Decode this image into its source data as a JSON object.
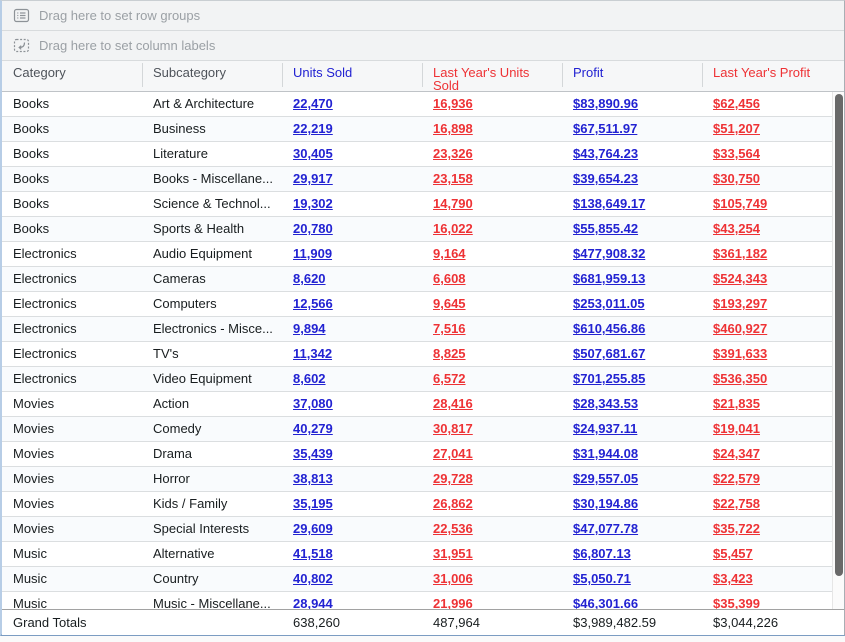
{
  "dropzones": {
    "row_groups": {
      "label": "Drag here to set row groups",
      "icon": "row-groups-icon"
    },
    "column_labels": {
      "label": "Drag here to set column labels",
      "icon": "column-labels-icon"
    }
  },
  "columns": [
    {
      "key": "category",
      "label": "Category",
      "color": "#4e535a",
      "is_value": false
    },
    {
      "key": "subcategory",
      "label": "Subcategory",
      "color": "#4e535a",
      "is_value": false
    },
    {
      "key": "units-sold",
      "label": "Units Sold",
      "color": "#2222d2",
      "is_value": true
    },
    {
      "key": "last-years-units-sold",
      "label": "Last Year's Units Sold",
      "color": "#ee3235",
      "is_value": true
    },
    {
      "key": "profit",
      "label": "Profit",
      "color": "#2222d2",
      "is_value": true
    },
    {
      "key": "last-years-profit",
      "label": "Last Year's Profit",
      "color": "#ee3235",
      "is_value": true
    }
  ],
  "rows": [
    [
      "Books",
      "Art & Architecture",
      "22,470",
      "16,936",
      "$83,890.96",
      "$62,456"
    ],
    [
      "Books",
      "Business",
      "22,219",
      "16,898",
      "$67,511.97",
      "$51,207"
    ],
    [
      "Books",
      "Literature",
      "30,405",
      "23,326",
      "$43,764.23",
      "$33,564"
    ],
    [
      "Books",
      "Books - Miscellane...",
      "29,917",
      "23,158",
      "$39,654.23",
      "$30,750"
    ],
    [
      "Books",
      "Science & Technol...",
      "19,302",
      "14,790",
      "$138,649.17",
      "$105,749"
    ],
    [
      "Books",
      "Sports & Health",
      "20,780",
      "16,022",
      "$55,855.42",
      "$43,254"
    ],
    [
      "Electronics",
      "Audio Equipment",
      "11,909",
      "9,164",
      "$477,908.32",
      "$361,182"
    ],
    [
      "Electronics",
      "Cameras",
      "8,620",
      "6,608",
      "$681,959.13",
      "$524,343"
    ],
    [
      "Electronics",
      "Computers",
      "12,566",
      "9,645",
      "$253,011.05",
      "$193,297"
    ],
    [
      "Electronics",
      "Electronics - Misce...",
      "9,894",
      "7,516",
      "$610,456.86",
      "$460,927"
    ],
    [
      "Electronics",
      "TV's",
      "11,342",
      "8,825",
      "$507,681.67",
      "$391,633"
    ],
    [
      "Electronics",
      "Video Equipment",
      "8,602",
      "6,572",
      "$701,255.85",
      "$536,350"
    ],
    [
      "Movies",
      "Action",
      "37,080",
      "28,416",
      "$28,343.53",
      "$21,835"
    ],
    [
      "Movies",
      "Comedy",
      "40,279",
      "30,817",
      "$24,937.11",
      "$19,041"
    ],
    [
      "Movies",
      "Drama",
      "35,439",
      "27,041",
      "$31,944.08",
      "$24,347"
    ],
    [
      "Movies",
      "Horror",
      "38,813",
      "29,728",
      "$29,557.05",
      "$22,579"
    ],
    [
      "Movies",
      "Kids / Family",
      "35,195",
      "26,862",
      "$30,194.86",
      "$22,758"
    ],
    [
      "Movies",
      "Special Interests",
      "29,609",
      "22,536",
      "$47,077.78",
      "$35,722"
    ],
    [
      "Music",
      "Alternative",
      "41,518",
      "31,951",
      "$6,807.13",
      "$5,457"
    ],
    [
      "Music",
      "Country",
      "40,802",
      "31,006",
      "$5,050.71",
      "$3,423"
    ],
    [
      "Music",
      "Music - Miscellane...",
      "28,944",
      "21,996",
      "$46,301.66",
      "$35,399"
    ]
  ],
  "grand_totals": {
    "cells": [
      "Grand Totals",
      "",
      "638,260",
      "487,964",
      "$3,989,482.59",
      "$3,044,226"
    ]
  },
  "colors": {
    "value_blue": "#2222d2",
    "value_red": "#ee3235",
    "header_text": "#4e535a",
    "dropzone_text": "#9ba0a5",
    "accent_border": "#7b9cc2",
    "alt_row": "#f9fbfd"
  }
}
